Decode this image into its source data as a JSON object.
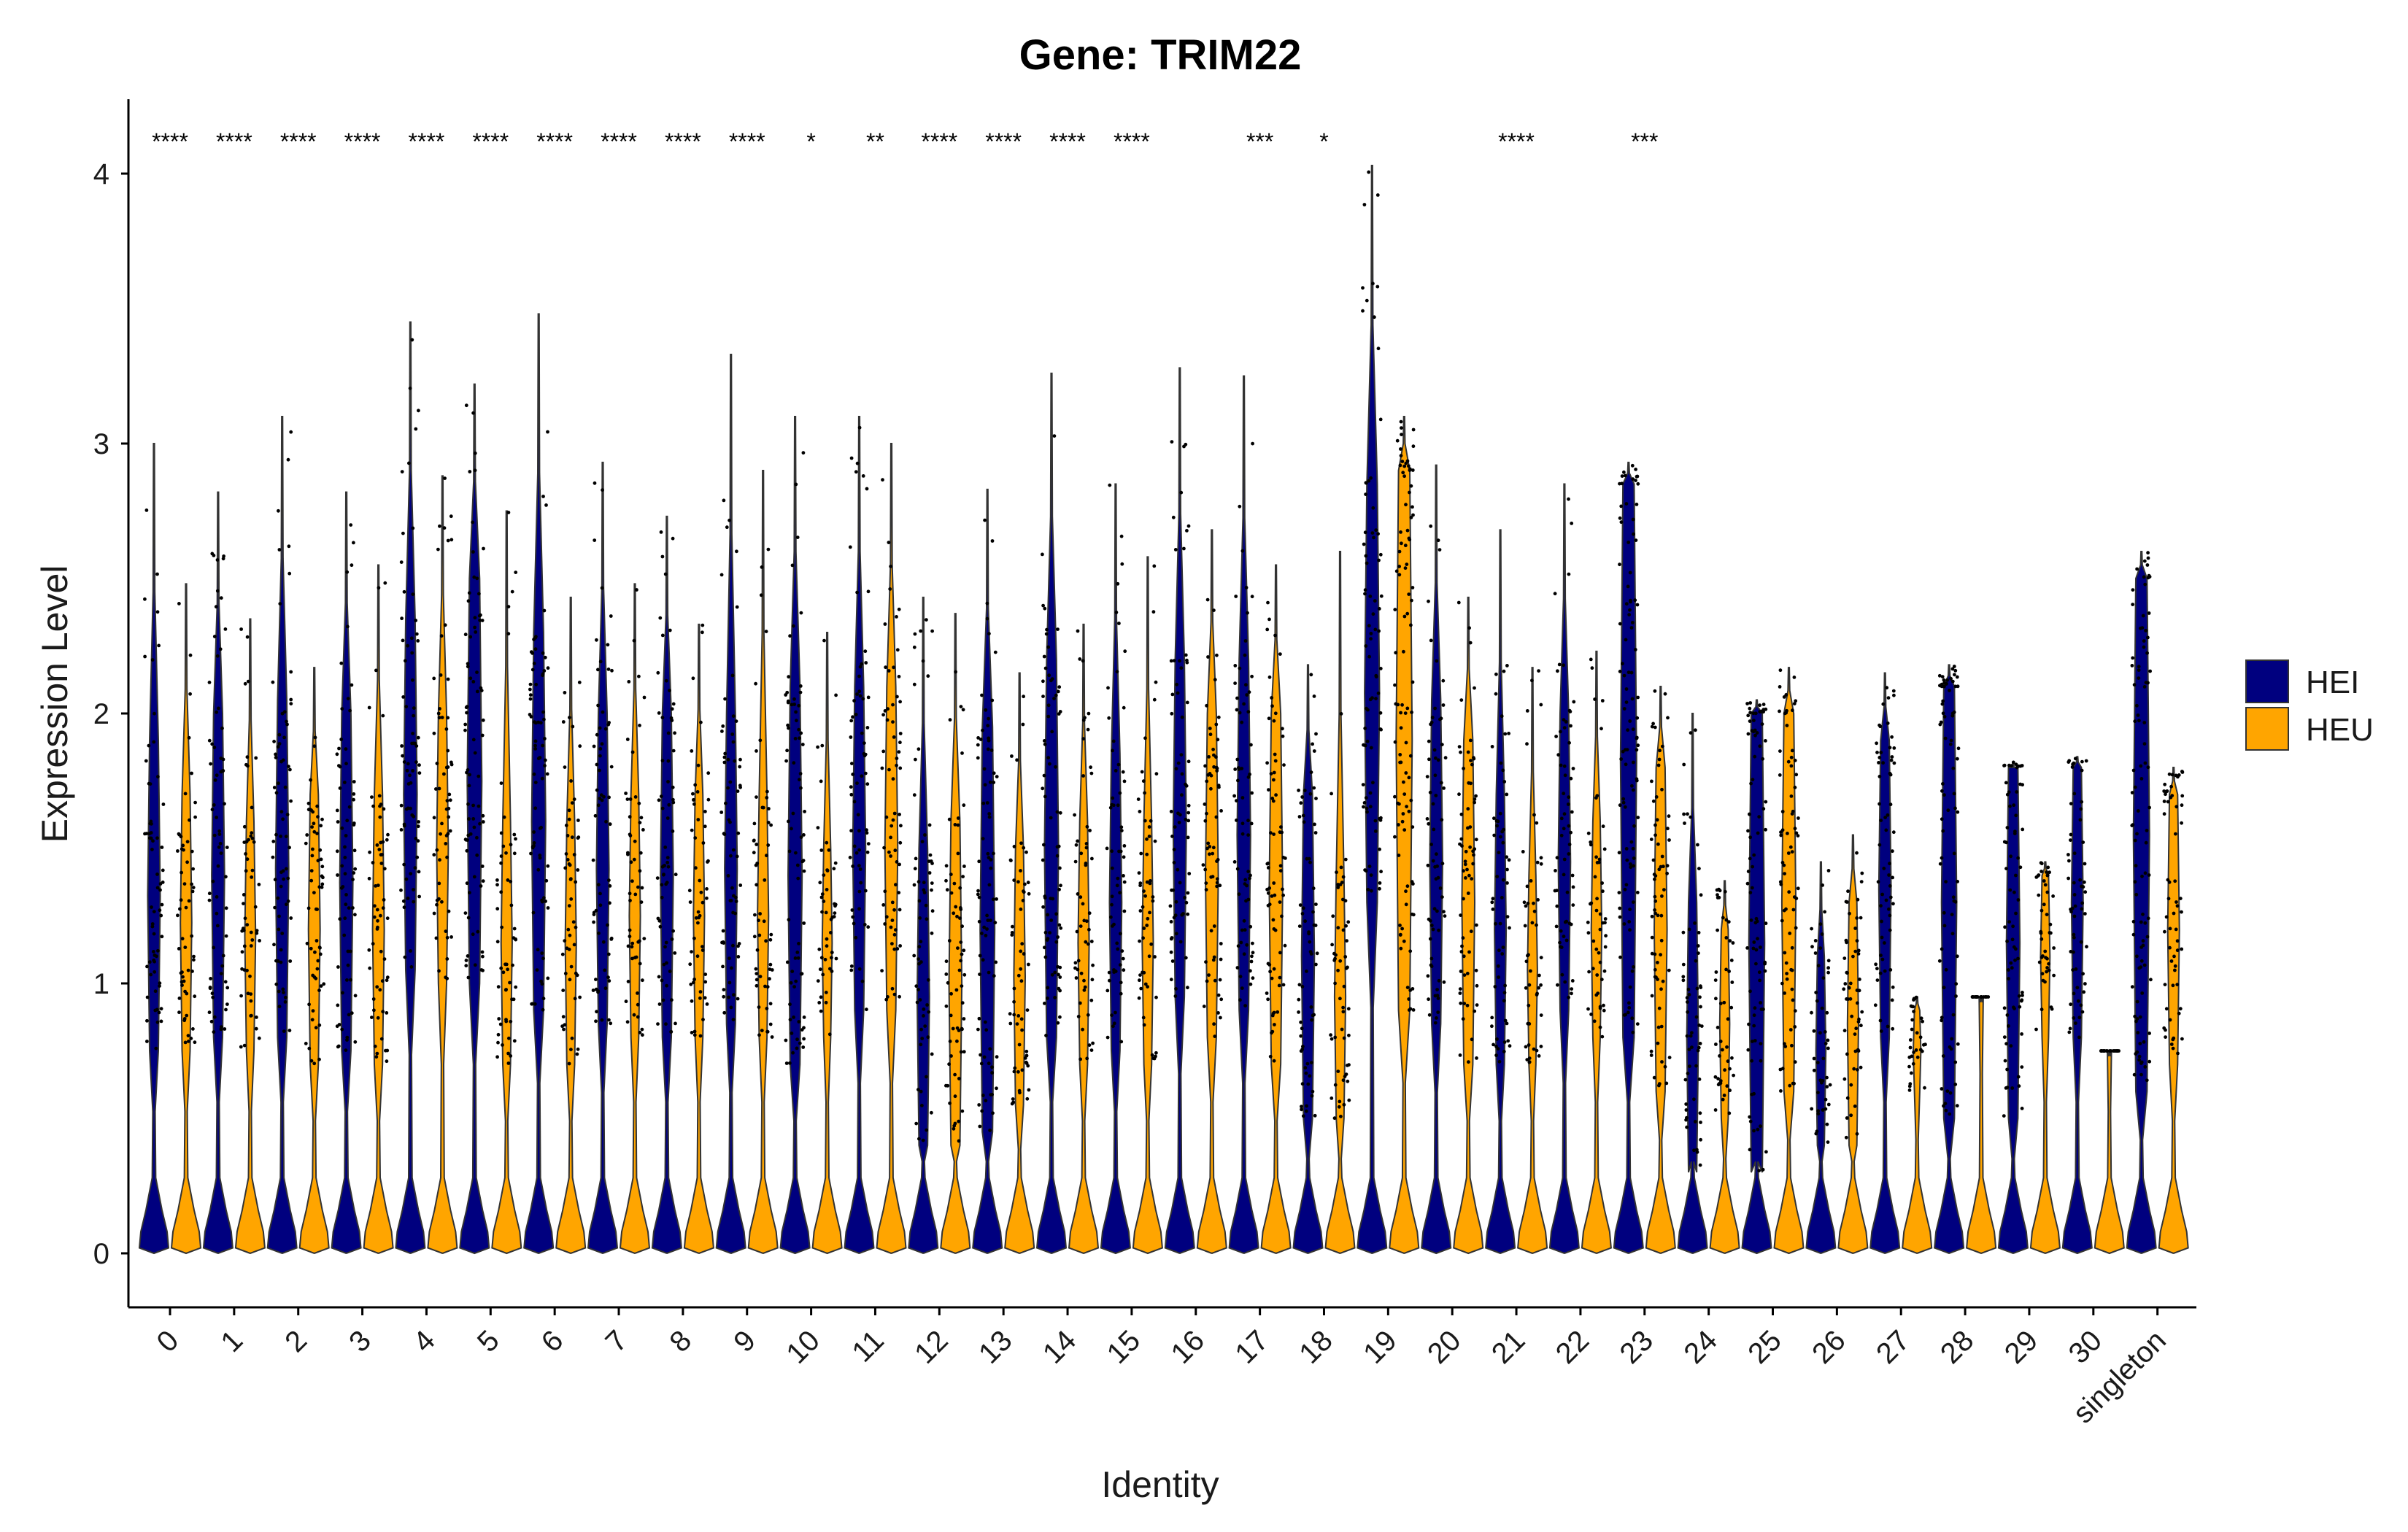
{
  "chart_data": {
    "type": "violin",
    "title": "Gene: TRIM22",
    "xlabel": "Identity",
    "ylabel": "Expression Level",
    "ylim": [
      0,
      4
    ],
    "yticks": [
      0,
      1,
      2,
      3,
      4
    ],
    "grid": false,
    "legend_position": "right",
    "categories": [
      "0",
      "1",
      "2",
      "3",
      "4",
      "5",
      "6",
      "7",
      "8",
      "9",
      "10",
      "11",
      "12",
      "13",
      "14",
      "15",
      "16",
      "17",
      "18",
      "19",
      "20",
      "21",
      "22",
      "23",
      "24",
      "25",
      "26",
      "27",
      "28",
      "29",
      "30",
      "singleton"
    ],
    "series": [
      {
        "name": "HEI",
        "color": "#00007f",
        "max": [
          3.0,
          2.82,
          3.1,
          2.82,
          3.45,
          3.22,
          3.48,
          2.93,
          2.73,
          3.33,
          3.1,
          3.1,
          2.43,
          2.83,
          3.26,
          2.85,
          3.28,
          3.25,
          2.18,
          4.03,
          2.92,
          2.68,
          2.85,
          2.93,
          2.0,
          2.05,
          1.45,
          2.15,
          2.18,
          1.82,
          1.84,
          2.6
        ],
        "median_band": [
          [
            0.75,
            1.9
          ],
          [
            0.8,
            2.0
          ],
          [
            0.8,
            2.05
          ],
          [
            0.75,
            2.0
          ],
          [
            1.05,
            2.35
          ],
          [
            1.0,
            2.5
          ],
          [
            0.9,
            2.3
          ],
          [
            0.85,
            2.0
          ],
          [
            0.8,
            2.0
          ],
          [
            0.85,
            2.0
          ],
          [
            0.7,
            2.1
          ],
          [
            0.9,
            2.1
          ],
          [
            0.4,
            1.5
          ],
          [
            0.45,
            1.95
          ],
          [
            0.8,
            2.2
          ],
          [
            0.75,
            1.85
          ],
          [
            0.95,
            2.2
          ],
          [
            0.9,
            2.2
          ],
          [
            0.5,
            1.7
          ],
          [
            1.3,
            2.85
          ],
          [
            0.85,
            2.05
          ],
          [
            0.7,
            1.7
          ],
          [
            0.9,
            2.0
          ],
          [
            0.8,
            2.85
          ],
          [
            0.3,
            1.3
          ],
          [
            0.3,
            2.0
          ],
          [
            0.4,
            1.1
          ],
          [
            0.8,
            1.9
          ],
          [
            0.5,
            2.1
          ],
          [
            0.5,
            1.8
          ],
          [
            0.8,
            1.8
          ],
          [
            0.6,
            2.5
          ]
        ]
      },
      {
        "name": "HEU",
        "color": "#ffa500",
        "max": [
          2.48,
          2.35,
          2.17,
          2.55,
          2.88,
          2.75,
          2.43,
          2.48,
          2.33,
          2.9,
          2.3,
          3.0,
          2.37,
          2.15,
          2.33,
          2.58,
          2.68,
          2.55,
          2.6,
          3.1,
          2.43,
          2.17,
          2.23,
          2.1,
          1.38,
          2.17,
          1.55,
          0.95,
          0.95,
          1.45,
          0.75,
          1.8
        ],
        "median_band": [
          [
            0.75,
            1.7
          ],
          [
            0.75,
            1.6
          ],
          [
            0.7,
            1.7
          ],
          [
            0.7,
            1.7
          ],
          [
            1.0,
            2.0
          ],
          [
            0.7,
            1.6
          ],
          [
            0.7,
            1.6
          ],
          [
            0.8,
            1.7
          ],
          [
            0.8,
            1.7
          ],
          [
            0.8,
            1.7
          ],
          [
            0.8,
            1.5
          ],
          [
            0.9,
            2.1
          ],
          [
            0.4,
            1.6
          ],
          [
            0.55,
            1.5
          ],
          [
            0.7,
            1.6
          ],
          [
            0.7,
            1.6
          ],
          [
            0.8,
            2.0
          ],
          [
            0.7,
            2.0
          ],
          [
            0.5,
            1.4
          ],
          [
            0.9,
            2.9
          ],
          [
            0.7,
            1.9
          ],
          [
            0.7,
            1.4
          ],
          [
            0.8,
            1.6
          ],
          [
            0.6,
            1.8
          ],
          [
            0.5,
            1.2
          ],
          [
            0.6,
            2.0
          ],
          [
            0.4,
            1.3
          ],
          [
            0.6,
            0.9
          ],
          [
            0.95,
            0.95
          ],
          [
            0.8,
            1.4
          ],
          [
            0.75,
            0.75
          ],
          [
            0.7,
            1.7
          ]
        ]
      }
    ],
    "significance": [
      "****",
      "****",
      "****",
      "****",
      "****",
      "****",
      "****",
      "****",
      "****",
      "****",
      "*",
      "**",
      "****",
      "****",
      "****",
      "****",
      "",
      "***",
      "*",
      "",
      "",
      "****",
      "",
      "***",
      "",
      "",
      "",
      "",
      "",
      "",
      "",
      ""
    ]
  }
}
